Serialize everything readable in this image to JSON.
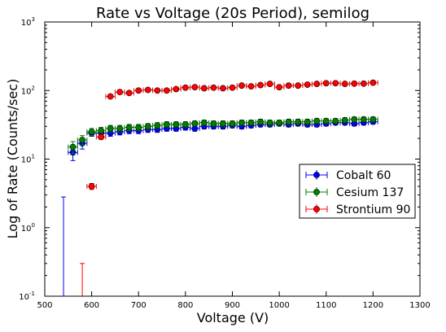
{
  "chart_data": {
    "type": "scatter",
    "title": "Rate vs Voltage (20s Period), semilog",
    "xlabel": "Voltage (V)",
    "ylabel": "Log of Rate (Counts/sec)",
    "xlim": [
      500,
      1300
    ],
    "ylim": [
      0.1,
      1000
    ],
    "yscale": "log",
    "x_ticks": [
      "500",
      "600",
      "700",
      "800",
      "900",
      "1000",
      "1100",
      "1200",
      "1300"
    ],
    "y_ticks": [
      {
        "base": "10",
        "exp": "-1"
      },
      {
        "base": "10",
        "exp": "0"
      },
      {
        "base": "10",
        "exp": "1"
      },
      {
        "base": "10",
        "exp": "2"
      },
      {
        "base": "10",
        "exp": "3"
      }
    ],
    "grid": false,
    "legend_position": "right",
    "series": [
      {
        "name": "Cobalt 60",
        "color": "#0000ff",
        "marker": "circle",
        "x": [
          540,
          560,
          580,
          600,
          620,
          640,
          660,
          680,
          700,
          720,
          740,
          760,
          780,
          800,
          820,
          840,
          860,
          880,
          900,
          920,
          940,
          960,
          980,
          1000,
          1020,
          1040,
          1060,
          1080,
          1100,
          1120,
          1140,
          1160,
          1180,
          1200
        ],
        "y": [
          0.1,
          12.5,
          17,
          24,
          24,
          24,
          25,
          26,
          26,
          27,
          27,
          28,
          28,
          29,
          28,
          30,
          30,
          30,
          31,
          30,
          31,
          32,
          32,
          33,
          32,
          33,
          32,
          32,
          33,
          34,
          34,
          33,
          34,
          35
        ],
        "yerr_low": [
          0.1,
          3,
          3,
          2.5,
          2.5,
          2.5,
          2.5,
          2.5,
          2.5,
          2.5,
          2.5,
          2.5,
          2.5,
          2.5,
          2.5,
          2.5,
          2.5,
          2.5,
          2.5,
          2.5,
          2.5,
          2.5,
          2.5,
          2.5,
          2.5,
          2.5,
          2.5,
          2.5,
          2.5,
          2.5,
          2.5,
          2.5,
          2.5,
          2.5
        ],
        "yerr_high": [
          2.7,
          3,
          3,
          2.5,
          2.5,
          2.5,
          2.5,
          2.5,
          2.5,
          2.5,
          2.5,
          2.5,
          2.5,
          2.5,
          2.5,
          2.5,
          2.5,
          2.5,
          2.5,
          2.5,
          2.5,
          2.5,
          2.5,
          2.5,
          2.5,
          2.5,
          2.5,
          2.5,
          2.5,
          2.5,
          2.5,
          2.5,
          2.5,
          2.5
        ],
        "xerr": 10
      },
      {
        "name": "Cesium 137",
        "color": "#007f00",
        "marker": "circle",
        "x": [
          560,
          580,
          600,
          620,
          640,
          660,
          680,
          700,
          720,
          740,
          760,
          780,
          800,
          820,
          840,
          860,
          880,
          900,
          920,
          940,
          960,
          980,
          1000,
          1020,
          1040,
          1060,
          1080,
          1100,
          1120,
          1140,
          1160,
          1180,
          1200
        ],
        "y": [
          15,
          19,
          25,
          26,
          28,
          28,
          29,
          29,
          30,
          31,
          32,
          32,
          32,
          33,
          34,
          33,
          33,
          33,
          34,
          34,
          35,
          34,
          34,
          35,
          35,
          35,
          36,
          36,
          36,
          37,
          38,
          38,
          38
        ],
        "yerr_low": [
          3,
          3,
          3,
          3,
          3,
          3,
          3,
          3,
          3,
          3,
          3,
          3,
          3,
          3,
          3,
          3,
          3,
          3,
          3,
          3,
          3,
          3,
          3,
          3,
          3,
          3,
          3,
          3,
          3,
          3,
          3,
          3,
          3
        ],
        "yerr_high": [
          3,
          3,
          3,
          3,
          3,
          3,
          3,
          3,
          3,
          3,
          3,
          3,
          3,
          3,
          3,
          3,
          3,
          3,
          3,
          3,
          3,
          3,
          3,
          3,
          3,
          3,
          3,
          3,
          3,
          3,
          3,
          3,
          3
        ],
        "xerr": 10
      },
      {
        "name": "Strontium 90",
        "color": "#ff0000",
        "marker": "circle",
        "x": [
          580,
          600,
          620,
          640,
          660,
          680,
          700,
          720,
          740,
          760,
          780,
          800,
          820,
          840,
          860,
          880,
          900,
          920,
          940,
          960,
          980,
          1000,
          1020,
          1040,
          1060,
          1080,
          1100,
          1120,
          1140,
          1160,
          1180,
          1200
        ],
        "y": [
          0.1,
          4,
          21,
          82,
          95,
          92,
          100,
          102,
          100,
          100,
          105,
          110,
          112,
          108,
          110,
          108,
          110,
          118,
          115,
          120,
          125,
          112,
          118,
          118,
          122,
          125,
          128,
          128,
          125,
          126,
          126,
          130
        ],
        "yerr_low": [
          0.1,
          0.4,
          1.5,
          4,
          4,
          4,
          4,
          4,
          4,
          4,
          4,
          4,
          4,
          4,
          4,
          4,
          4,
          4,
          4,
          4,
          4,
          4,
          4,
          4,
          4,
          4,
          4,
          4,
          4,
          4,
          4,
          4
        ],
        "yerr_high": [
          0.2,
          0.4,
          1.5,
          4,
          4,
          4,
          4,
          4,
          4,
          4,
          4,
          4,
          4,
          4,
          4,
          4,
          4,
          4,
          4,
          4,
          4,
          4,
          4,
          4,
          4,
          4,
          4,
          4,
          4,
          4,
          4,
          4
        ],
        "xerr": 10
      }
    ]
  }
}
